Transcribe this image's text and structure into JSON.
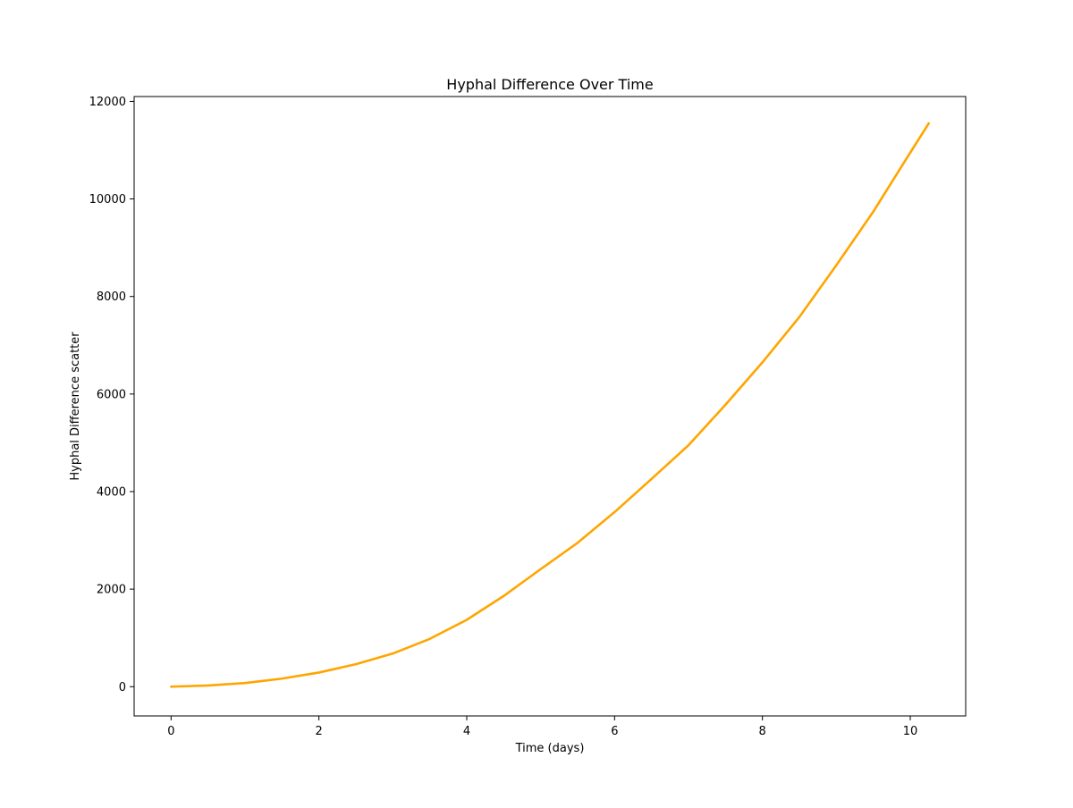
{
  "chart_data": {
    "type": "line",
    "title": "Hyphal Difference Over Time",
    "xlabel": "Time (days)",
    "ylabel": "Hyphal Difference scatter",
    "xlim": [
      -0.5,
      10.75
    ],
    "ylim": [
      -600,
      12100
    ],
    "xticks": [
      0,
      2,
      4,
      6,
      8,
      10
    ],
    "yticks": [
      0,
      2000,
      4000,
      6000,
      8000,
      10000,
      12000
    ],
    "xtick_labels": [
      "0",
      "2",
      "4",
      "6",
      "8",
      "10"
    ],
    "ytick_labels": [
      "0",
      "2000",
      "4000",
      "6000",
      "8000",
      "10000",
      "12000"
    ],
    "grid": false,
    "legend": "none",
    "colors": {
      "series": "#FFA500",
      "axes": "#000000",
      "background": "#ffffff"
    },
    "series": [
      {
        "x": [
          0,
          0.5,
          1,
          1.5,
          2,
          2.5,
          3,
          3.5,
          4,
          4.5,
          5,
          5.5,
          6,
          6.5,
          7,
          7.5,
          8,
          8.5,
          9,
          9.5,
          10,
          10.25
        ],
        "values": [
          0,
          25,
          75,
          165,
          290,
          460,
          680,
          980,
          1370,
          1860,
          2410,
          2950,
          3580,
          4260,
          4950,
          5780,
          6650,
          7580,
          8640,
          9740,
          10950,
          11550
        ]
      }
    ]
  }
}
